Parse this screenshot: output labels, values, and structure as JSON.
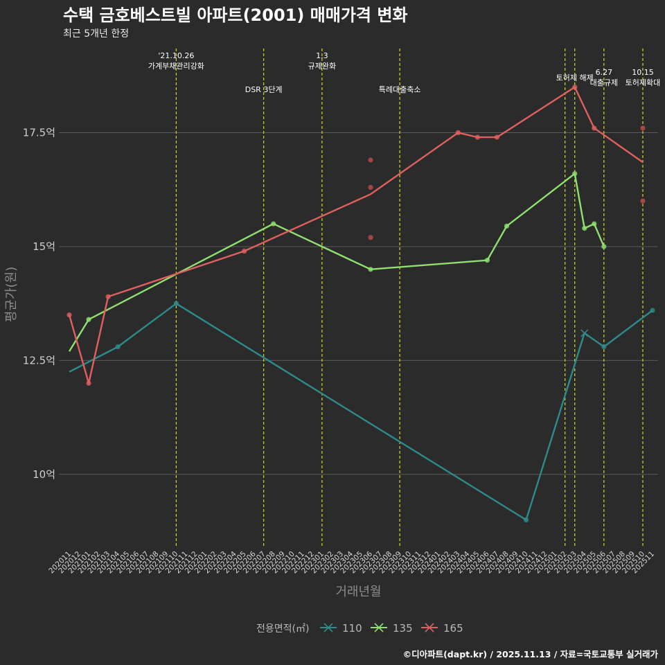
{
  "title": "수택 금호베스트빌 아파트(2001) 매매가격 변화",
  "subtitle": "최근 5개년 한정",
  "caption": "©디아파트(dapt.kr) / 2025.11.13 / 자료=국토교통부 실거래가",
  "chart_data": {
    "type": "line",
    "title": "수택 금호베스트빌 아파트(2001) 매매가격 변화",
    "subtitle": "최근 5개년 한정",
    "xlabel": "거래년월",
    "ylabel": "평균가(원)",
    "ylim": [
      8.4,
      19.5
    ],
    "y_ticks": [
      {
        "value": 10,
        "label": "10억"
      },
      {
        "value": 12.5,
        "label": "12.5억"
      },
      {
        "value": 15,
        "label": "15억"
      },
      {
        "value": 17.5,
        "label": "17.5억"
      }
    ],
    "x_categories": [
      "202011",
      "202012",
      "202101",
      "202102",
      "202103",
      "202104",
      "202105",
      "202106",
      "202107",
      "202108",
      "202109",
      "202110",
      "202111",
      "202112",
      "202201",
      "202202",
      "202203",
      "202204",
      "202205",
      "202206",
      "202207",
      "202208",
      "202209",
      "202210",
      "202211",
      "202212",
      "202301",
      "202302",
      "202303",
      "202304",
      "202305",
      "202306",
      "202307",
      "202308",
      "202309",
      "202310",
      "202311",
      "202312",
      "202401",
      "202402",
      "202403",
      "202404",
      "202405",
      "202406",
      "202407",
      "202408",
      "202409",
      "202410",
      "202411",
      "202412",
      "202501",
      "202502",
      "202503",
      "202504",
      "202505",
      "202506",
      "202507",
      "202508",
      "202509",
      "202510",
      "202511"
    ],
    "legend_title": "전용면적(㎡)",
    "series": [
      {
        "name": "110",
        "color": "#2e8b8b",
        "line": [
          [
            "202011",
            12.25
          ],
          [
            "202104",
            12.8
          ],
          [
            "202110",
            13.75
          ],
          [
            "202410",
            9.0
          ],
          [
            "202504",
            13.1
          ],
          [
            "202506",
            12.8
          ],
          [
            "202511",
            13.6
          ]
        ],
        "points": [
          [
            "202104",
            12.8
          ],
          [
            "202110",
            13.75
          ],
          [
            "202410",
            9.0
          ],
          [
            "202506",
            12.8
          ],
          [
            "202511",
            13.6
          ]
        ],
        "cross_points": [
          [
            "202504",
            13.1
          ]
        ]
      },
      {
        "name": "135",
        "color": "#90e070",
        "line": [
          [
            "202011",
            12.7
          ],
          [
            "202101",
            13.4
          ],
          [
            "202208",
            15.5
          ],
          [
            "202306",
            14.5
          ],
          [
            "202406",
            14.7
          ],
          [
            "202408",
            15.45
          ],
          [
            "202503",
            16.6
          ],
          [
            "202504",
            15.4
          ],
          [
            "202505",
            15.5
          ],
          [
            "202506",
            15.0
          ]
        ],
        "points": [
          [
            "202101",
            13.4
          ],
          [
            "202208",
            15.5
          ],
          [
            "202306",
            14.5
          ],
          [
            "202406",
            14.7
          ],
          [
            "202408",
            15.45
          ],
          [
            "202503",
            16.6
          ],
          [
            "202504",
            15.4
          ],
          [
            "202505",
            15.5
          ],
          [
            "202506",
            15.0
          ]
        ],
        "cross_points": []
      },
      {
        "name": "165",
        "color": "#e06060",
        "line": [
          [
            "202011",
            13.5
          ],
          [
            "202101",
            12.0
          ],
          [
            "202103",
            13.9
          ],
          [
            "202205",
            14.9
          ],
          [
            "202306",
            16.15
          ],
          [
            "202403",
            17.5
          ],
          [
            "202405",
            17.4
          ],
          [
            "202407",
            17.4
          ],
          [
            "202503",
            18.5
          ],
          [
            "202505",
            17.6
          ],
          [
            "202510",
            16.85
          ]
        ],
        "points": [
          [
            "202011",
            13.5
          ],
          [
            "202101",
            12.0
          ],
          [
            "202103",
            13.9
          ],
          [
            "202205",
            14.9
          ],
          [
            "202403",
            17.5
          ],
          [
            "202405",
            17.4
          ],
          [
            "202407",
            17.4
          ],
          [
            "202503",
            18.5
          ],
          [
            "202505",
            17.6
          ]
        ],
        "cross_points": [],
        "scatter": [
          [
            "202306",
            16.9
          ],
          [
            "202306",
            16.3
          ],
          [
            "202306",
            15.2
          ],
          [
            "202510",
            17.6
          ],
          [
            "202510",
            16.0
          ]
        ]
      }
    ],
    "events": [
      {
        "month": "202110",
        "lines": [
          "'21.10.26",
          "가계부채관리강화"
        ],
        "level": 0
      },
      {
        "month": "202207",
        "lines": [
          "DSR 3단계"
        ],
        "level": 2
      },
      {
        "month": "202301",
        "lines": [
          "1.3",
          "규제완화"
        ],
        "level": 0
      },
      {
        "month": "202309",
        "lines": [
          "특례대출축소"
        ],
        "level": 2
      },
      {
        "month": "202502",
        "lines": [],
        "level": 0
      },
      {
        "month": "202503",
        "lines": [
          "토허제 해제"
        ],
        "level": 1
      },
      {
        "month": "202506",
        "lines": [
          "6.27",
          "대출규제"
        ],
        "level": 3
      },
      {
        "month": "202510",
        "lines": [
          "10.15",
          "토허제확대"
        ],
        "level": 3
      }
    ]
  }
}
